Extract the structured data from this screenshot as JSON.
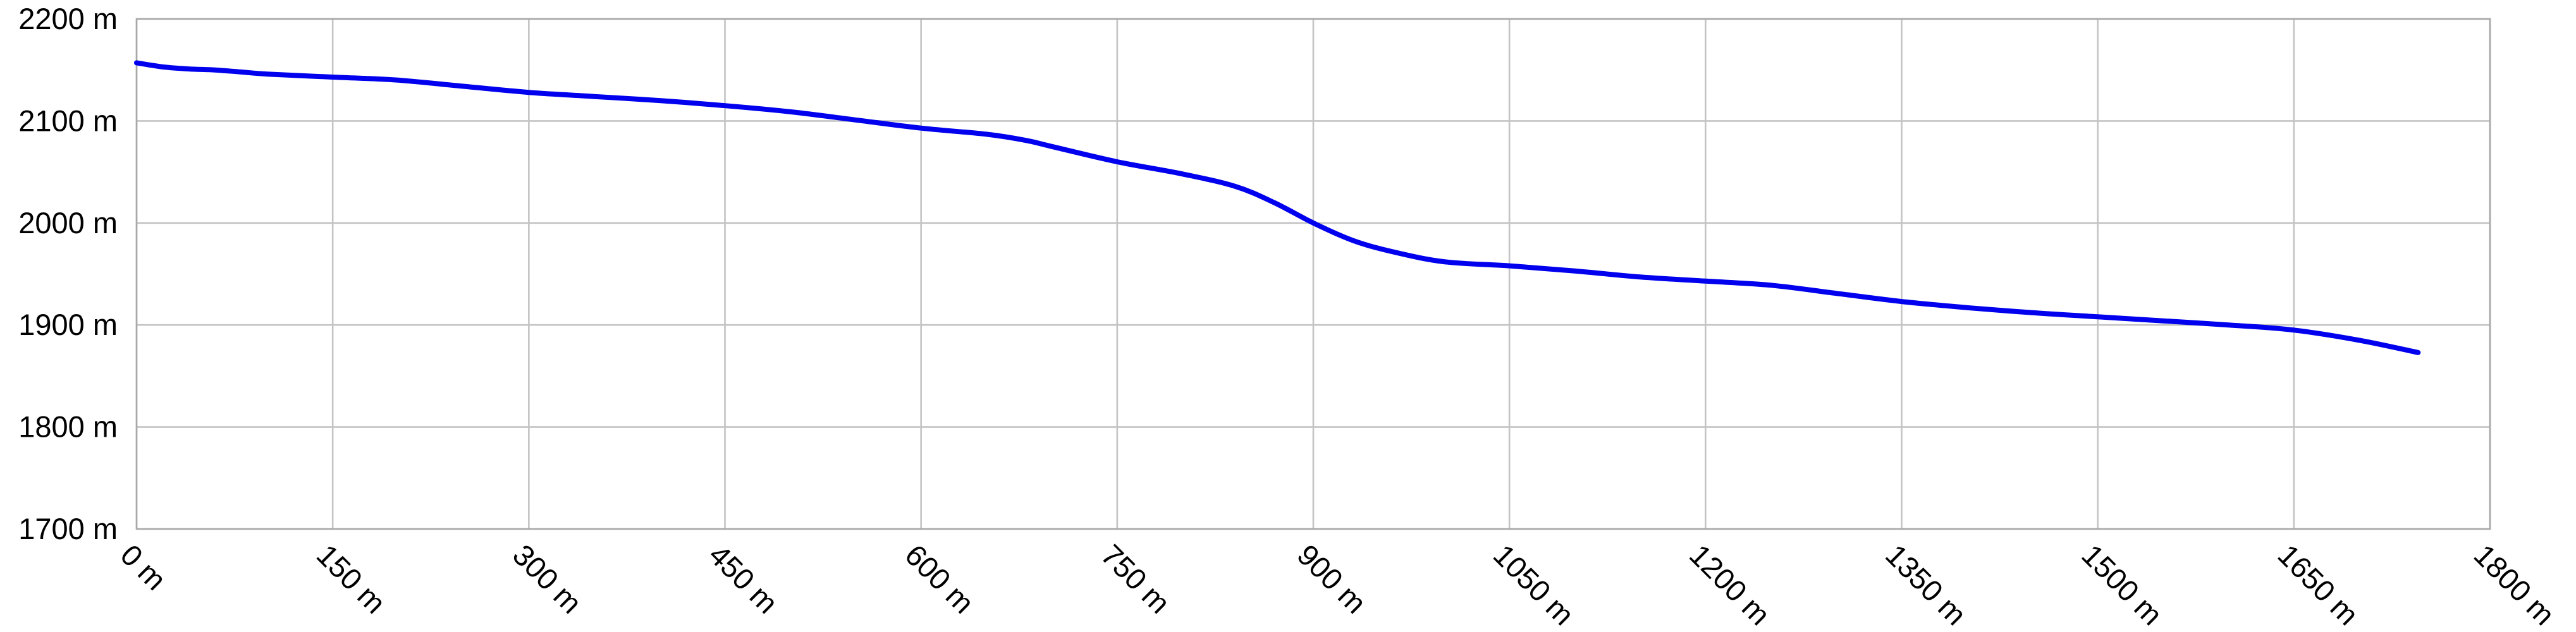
{
  "chart_data": {
    "type": "line",
    "title": "",
    "xlabel": "",
    "ylabel": "",
    "xlim": [
      0,
      1800
    ],
    "ylim": [
      1700,
      2200
    ],
    "x_ticks": [
      {
        "value": 0,
        "label": "0 m"
      },
      {
        "value": 150,
        "label": "150 m"
      },
      {
        "value": 300,
        "label": "300 m"
      },
      {
        "value": 450,
        "label": "450 m"
      },
      {
        "value": 600,
        "label": "600 m"
      },
      {
        "value": 750,
        "label": "750 m"
      },
      {
        "value": 900,
        "label": "900 m"
      },
      {
        "value": 1050,
        "label": "1050 m"
      },
      {
        "value": 1200,
        "label": "1200 m"
      },
      {
        "value": 1350,
        "label": "1350 m"
      },
      {
        "value": 1500,
        "label": "1500 m"
      },
      {
        "value": 1650,
        "label": "1650 m"
      },
      {
        "value": 1800,
        "label": "1800 m"
      }
    ],
    "y_ticks": [
      {
        "value": 2200,
        "label": "2200 m"
      },
      {
        "value": 2100,
        "label": "2100 m"
      },
      {
        "value": 2000,
        "label": "2000 m"
      },
      {
        "value": 1900,
        "label": "1900 m"
      },
      {
        "value": 1800,
        "label": "1800 m"
      },
      {
        "value": 1700,
        "label": "1700 m"
      }
    ],
    "grid": true,
    "legend": "none",
    "series": [
      {
        "color": "#0000ee",
        "x": [
          0,
          20,
          40,
          60,
          80,
          100,
          150,
          200,
          250,
          300,
          350,
          400,
          450,
          500,
          550,
          600,
          650,
          680,
          700,
          750,
          800,
          840,
          870,
          900,
          930,
          960,
          1000,
          1050,
          1100,
          1150,
          1200,
          1250,
          1300,
          1350,
          1400,
          1450,
          1500,
          1550,
          1600,
          1650,
          1700,
          1745
        ],
        "values": [
          2157,
          2153,
          2151,
          2150,
          2148,
          2146,
          2143,
          2140,
          2134,
          2128,
          2124,
          2120,
          2115,
          2109,
          2101,
          2093,
          2087,
          2081,
          2075,
          2060,
          2048,
          2036,
          2020,
          2000,
          1983,
          1972,
          1962,
          1958,
          1953,
          1947,
          1943,
          1939,
          1931,
          1923,
          1917,
          1912,
          1908,
          1904,
          1900,
          1895,
          1885,
          1873
        ]
      }
    ]
  }
}
